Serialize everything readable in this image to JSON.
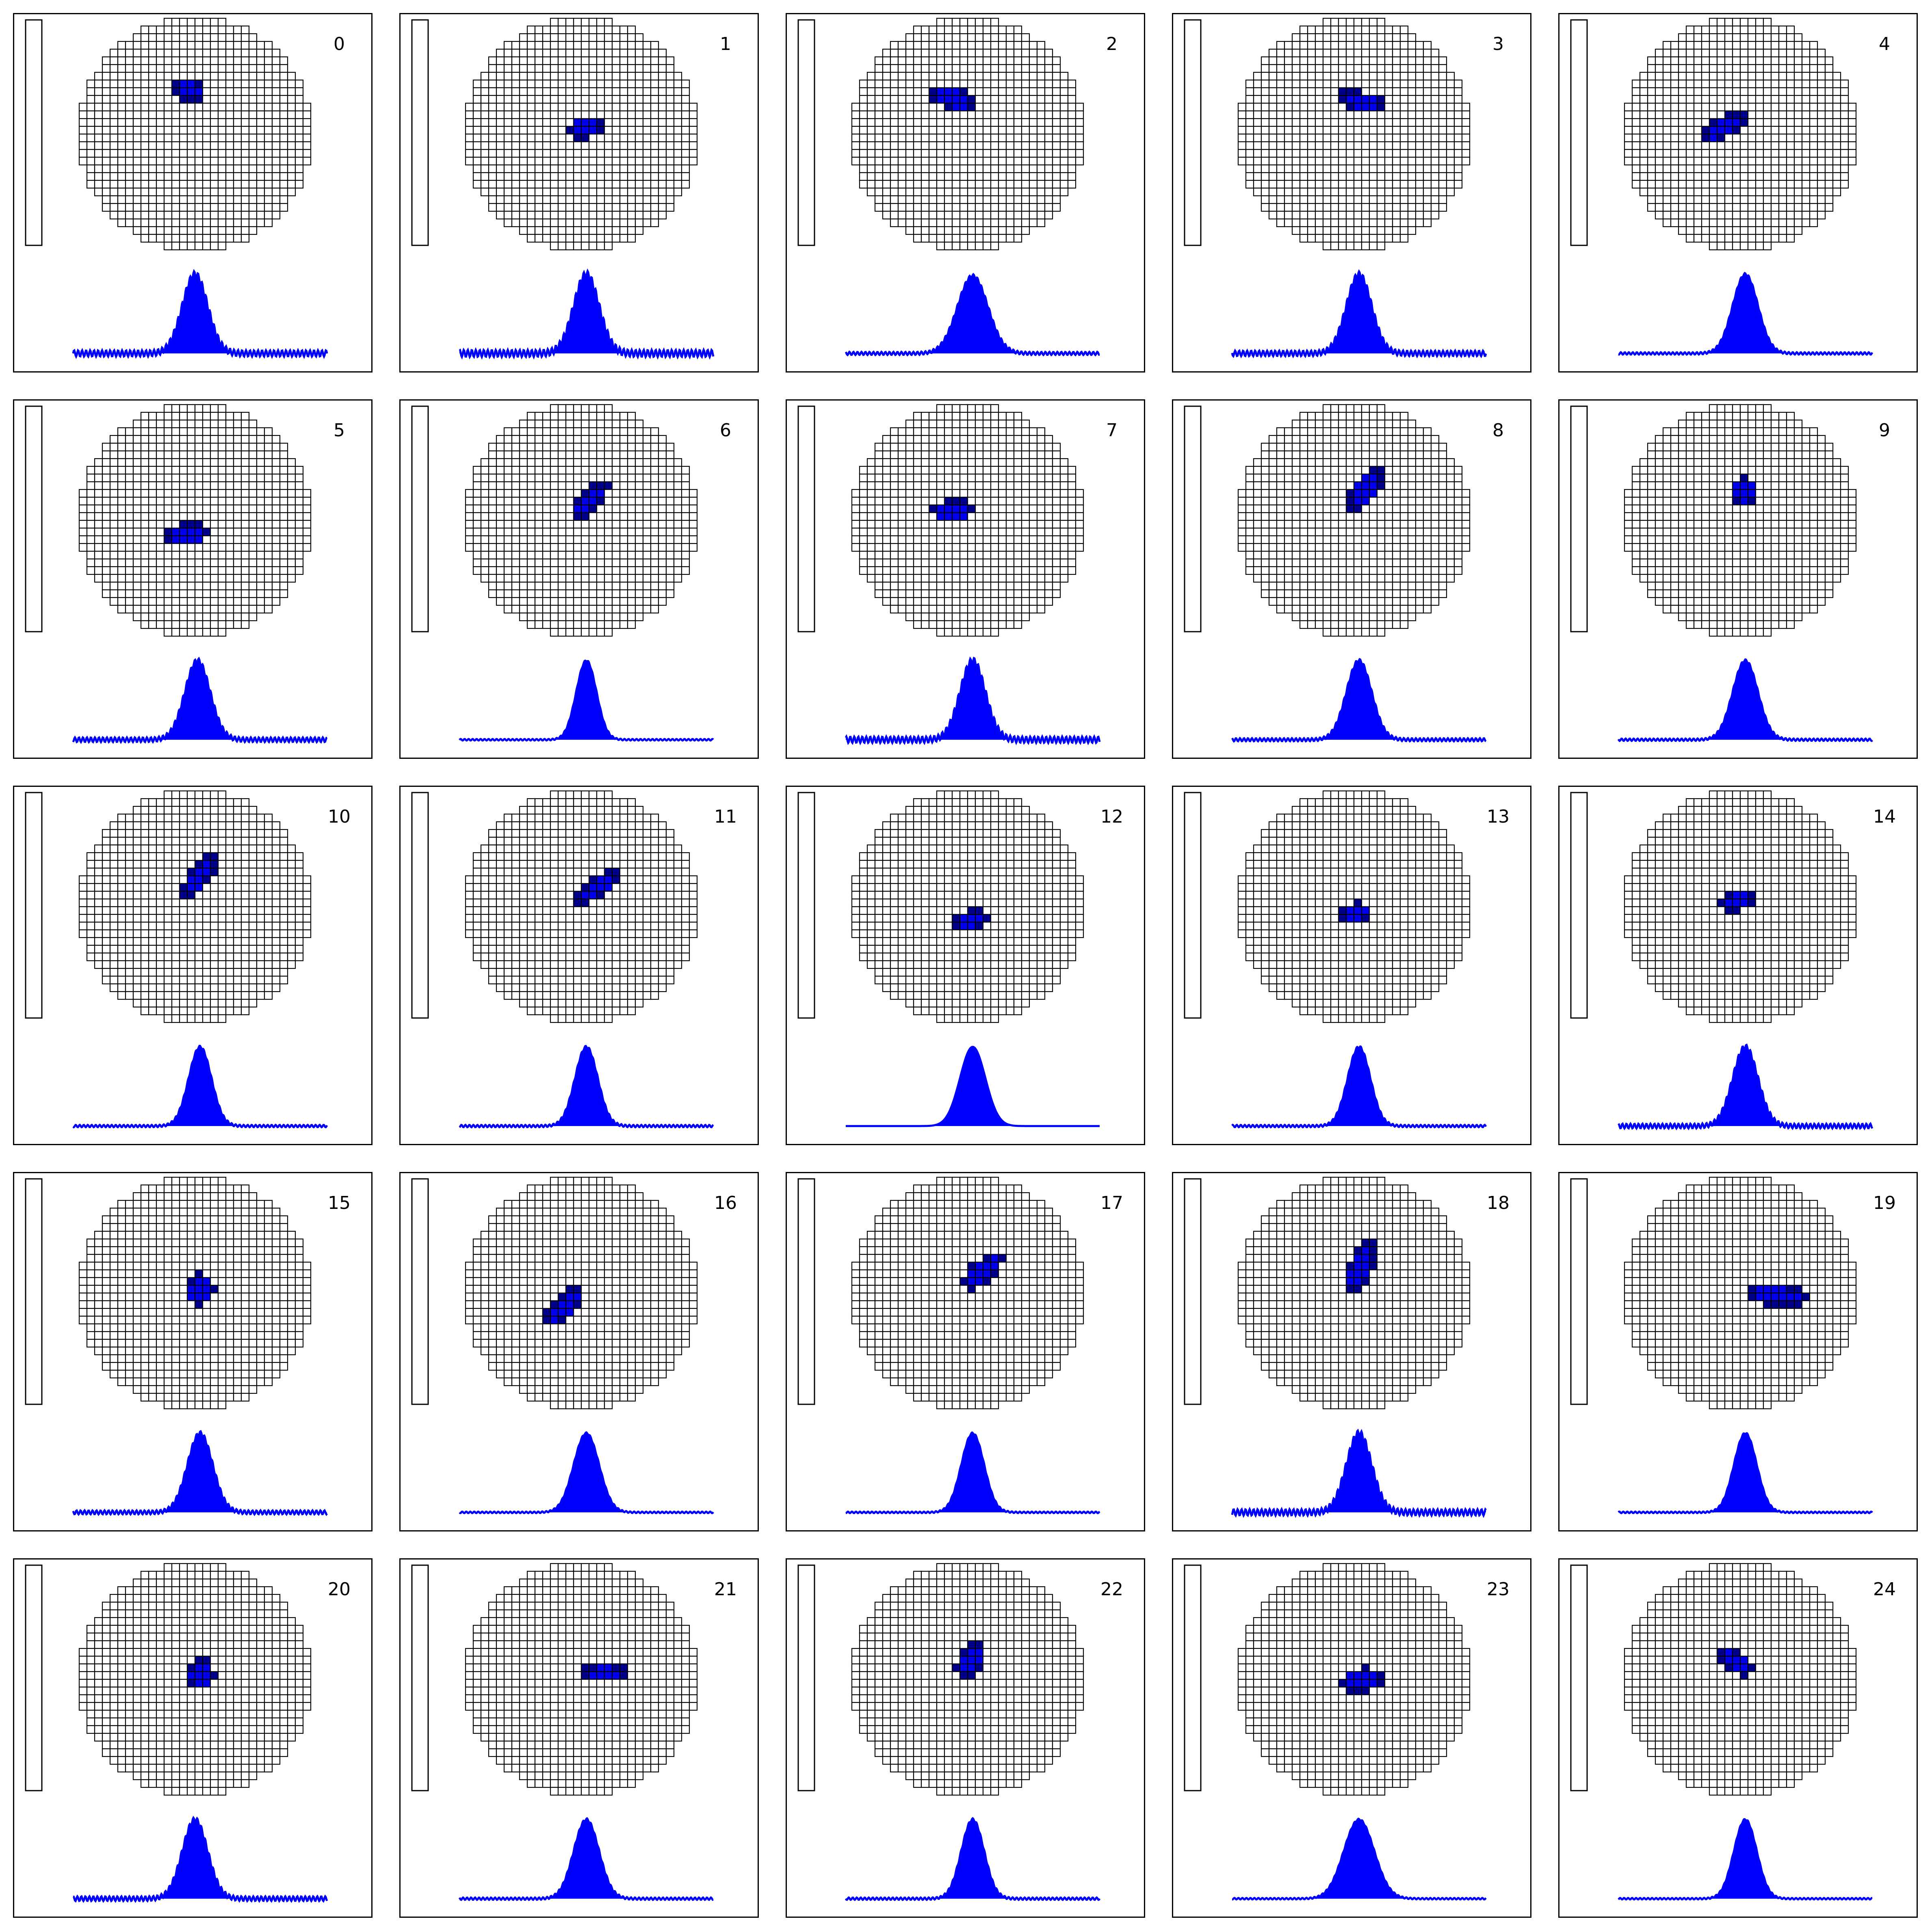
{
  "figure": {
    "layout": {
      "rows": 5,
      "cols": 5
    },
    "colors": {
      "outline": "#000000",
      "cell_fill": "#ffffff",
      "blob": "#0000ee",
      "blob_dark": "#00008b",
      "trace": "#0000ff",
      "background": "#ffffff"
    }
  },
  "chart_data": [
    {
      "type": "heatmap",
      "label": "0",
      "blob": {
        "cx": -0.05,
        "cy": 0.38,
        "rx": 0.1,
        "ry": 0.15,
        "angle": 80
      },
      "trace": {
        "peak": 1.0,
        "noise": 0.08,
        "center": 0.48,
        "width": 0.05
      }
    },
    {
      "type": "heatmap",
      "label": "1",
      "blob": {
        "cx": 0.02,
        "cy": 0.05,
        "rx": 0.09,
        "ry": 0.16,
        "angle": 100
      },
      "trace": {
        "peak": 1.0,
        "noise": 0.09,
        "center": 0.5,
        "width": 0.05
      }
    },
    {
      "type": "heatmap",
      "label": "2",
      "blob": {
        "cx": -0.13,
        "cy": 0.3,
        "rx": 0.2,
        "ry": 0.1,
        "angle": -15
      },
      "trace": {
        "peak": 0.98,
        "noise": 0.04,
        "center": 0.5,
        "width": 0.06
      }
    },
    {
      "type": "heatmap",
      "label": "3",
      "blob": {
        "cx": 0.07,
        "cy": 0.28,
        "rx": 0.09,
        "ry": 0.22,
        "angle": 75
      },
      "trace": {
        "peak": 1.0,
        "noise": 0.07,
        "center": 0.5,
        "width": 0.05
      }
    },
    {
      "type": "heatmap",
      "label": "4",
      "blob": {
        "cx": -0.14,
        "cy": 0.06,
        "rx": 0.22,
        "ry": 0.1,
        "angle": 28
      },
      "trace": {
        "peak": 1.0,
        "noise": 0.03,
        "center": 0.5,
        "width": 0.05
      }
    },
    {
      "type": "heatmap",
      "label": "5",
      "blob": {
        "cx": -0.06,
        "cy": -0.12,
        "rx": 0.1,
        "ry": 0.19,
        "angle": 95
      },
      "trace": {
        "peak": 1.0,
        "noise": 0.06,
        "center": 0.49,
        "width": 0.05
      }
    },
    {
      "type": "heatmap",
      "label": "6",
      "blob": {
        "cx": 0.07,
        "cy": 0.17,
        "rx": 0.22,
        "ry": 0.09,
        "angle": 45
      },
      "trace": {
        "peak": 1.0,
        "noise": 0.02,
        "center": 0.5,
        "width": 0.04
      }
    },
    {
      "type": "heatmap",
      "label": "7",
      "blob": {
        "cx": -0.13,
        "cy": 0.08,
        "rx": 0.18,
        "ry": 0.11,
        "angle": 5
      },
      "trace": {
        "peak": 1.0,
        "noise": 0.08,
        "center": 0.5,
        "width": 0.05
      }
    },
    {
      "type": "heatmap",
      "label": "8",
      "blob": {
        "cx": 0.1,
        "cy": 0.27,
        "rx": 0.23,
        "ry": 0.11,
        "angle": 55
      },
      "trace": {
        "peak": 1.0,
        "noise": 0.04,
        "center": 0.5,
        "width": 0.05
      }
    },
    {
      "type": "heatmap",
      "label": "9",
      "blob": {
        "cx": 0.03,
        "cy": 0.25,
        "rx": 0.12,
        "ry": 0.13,
        "angle": 70
      },
      "trace": {
        "peak": 1.0,
        "noise": 0.03,
        "center": 0.5,
        "width": 0.05
      }
    },
    {
      "type": "heatmap",
      "label": "10",
      "blob": {
        "cx": 0.05,
        "cy": 0.28,
        "rx": 0.24,
        "ry": 0.09,
        "angle": 55
      },
      "trace": {
        "peak": 1.0,
        "noise": 0.03,
        "center": 0.5,
        "width": 0.045
      }
    },
    {
      "type": "heatmap",
      "label": "11",
      "blob": {
        "cx": 0.13,
        "cy": 0.16,
        "rx": 0.23,
        "ry": 0.09,
        "angle": 35
      },
      "trace": {
        "peak": 1.0,
        "noise": 0.03,
        "center": 0.5,
        "width": 0.045
      }
    },
    {
      "type": "heatmap",
      "label": "12",
      "blob": {
        "cx": 0.03,
        "cy": -0.11,
        "rx": 0.09,
        "ry": 0.17,
        "angle": 100
      },
      "trace": {
        "peak": 1.0,
        "noise": 0.0,
        "center": 0.5,
        "width": 0.05
      }
    },
    {
      "type": "heatmap",
      "label": "13",
      "blob": {
        "cx": 0.02,
        "cy": -0.05,
        "rx": 0.09,
        "ry": 0.14,
        "angle": 95
      },
      "trace": {
        "peak": 1.0,
        "noise": 0.03,
        "center": 0.5,
        "width": 0.045
      }
    },
    {
      "type": "heatmap",
      "label": "14",
      "blob": {
        "cx": -0.03,
        "cy": 0.05,
        "rx": 0.16,
        "ry": 0.1,
        "angle": 20
      },
      "trace": {
        "peak": 1.0,
        "noise": 0.06,
        "center": 0.5,
        "width": 0.05
      }
    },
    {
      "type": "heatmap",
      "label": "15",
      "blob": {
        "cx": 0.04,
        "cy": 0.03,
        "rx": 0.13,
        "ry": 0.14,
        "angle": 0
      },
      "trace": {
        "peak": 1.0,
        "noise": 0.05,
        "center": 0.5,
        "width": 0.05
      }
    },
    {
      "type": "heatmap",
      "label": "16",
      "blob": {
        "cx": -0.15,
        "cy": -0.12,
        "rx": 0.23,
        "ry": 0.1,
        "angle": 45
      },
      "trace": {
        "peak": 1.0,
        "noise": 0.02,
        "center": 0.5,
        "width": 0.05
      }
    },
    {
      "type": "heatmap",
      "label": "17",
      "blob": {
        "cx": 0.13,
        "cy": 0.19,
        "rx": 0.22,
        "ry": 0.1,
        "angle": 40
      },
      "trace": {
        "peak": 1.0,
        "noise": 0.02,
        "center": 0.5,
        "width": 0.045
      }
    },
    {
      "type": "heatmap",
      "label": "18",
      "blob": {
        "cx": 0.06,
        "cy": 0.22,
        "rx": 0.25,
        "ry": 0.1,
        "angle": 65
      },
      "trace": {
        "peak": 1.0,
        "noise": 0.08,
        "center": 0.5,
        "width": 0.05
      }
    },
    {
      "type": "heatmap",
      "label": "19",
      "blob": {
        "cx": 0.3,
        "cy": -0.02,
        "rx": 0.28,
        "ry": 0.1,
        "angle": -5
      },
      "trace": {
        "peak": 1.0,
        "noise": 0.02,
        "center": 0.5,
        "width": 0.045
      }
    },
    {
      "type": "heatmap",
      "label": "20",
      "blob": {
        "cx": 0.05,
        "cy": 0.04,
        "rx": 0.12,
        "ry": 0.14,
        "angle": 0
      },
      "trace": {
        "peak": 1.0,
        "noise": 0.06,
        "center": 0.48,
        "width": 0.05
      }
    },
    {
      "type": "heatmap",
      "label": "21",
      "blob": {
        "cx": 0.2,
        "cy": 0.05,
        "rx": 0.22,
        "ry": 0.08,
        "angle": 0
      },
      "trace": {
        "peak": 1.0,
        "noise": 0.03,
        "center": 0.5,
        "width": 0.05
      }
    },
    {
      "type": "heatmap",
      "label": "22",
      "blob": {
        "cx": 0.03,
        "cy": 0.16,
        "rx": 0.17,
        "ry": 0.11,
        "angle": 55
      },
      "trace": {
        "peak": 1.0,
        "noise": 0.03,
        "center": 0.5,
        "width": 0.045
      }
    },
    {
      "type": "heatmap",
      "label": "23",
      "blob": {
        "cx": 0.07,
        "cy": -0.01,
        "rx": 0.19,
        "ry": 0.11,
        "angle": 10
      },
      "trace": {
        "peak": 1.0,
        "noise": 0.02,
        "center": 0.5,
        "width": 0.06
      }
    },
    {
      "type": "heatmap",
      "label": "24",
      "blob": {
        "cx": -0.03,
        "cy": 0.15,
        "rx": 0.17,
        "ry": 0.1,
        "angle": -30
      },
      "trace": {
        "peak": 1.0,
        "noise": 0.02,
        "center": 0.5,
        "width": 0.045
      }
    }
  ]
}
